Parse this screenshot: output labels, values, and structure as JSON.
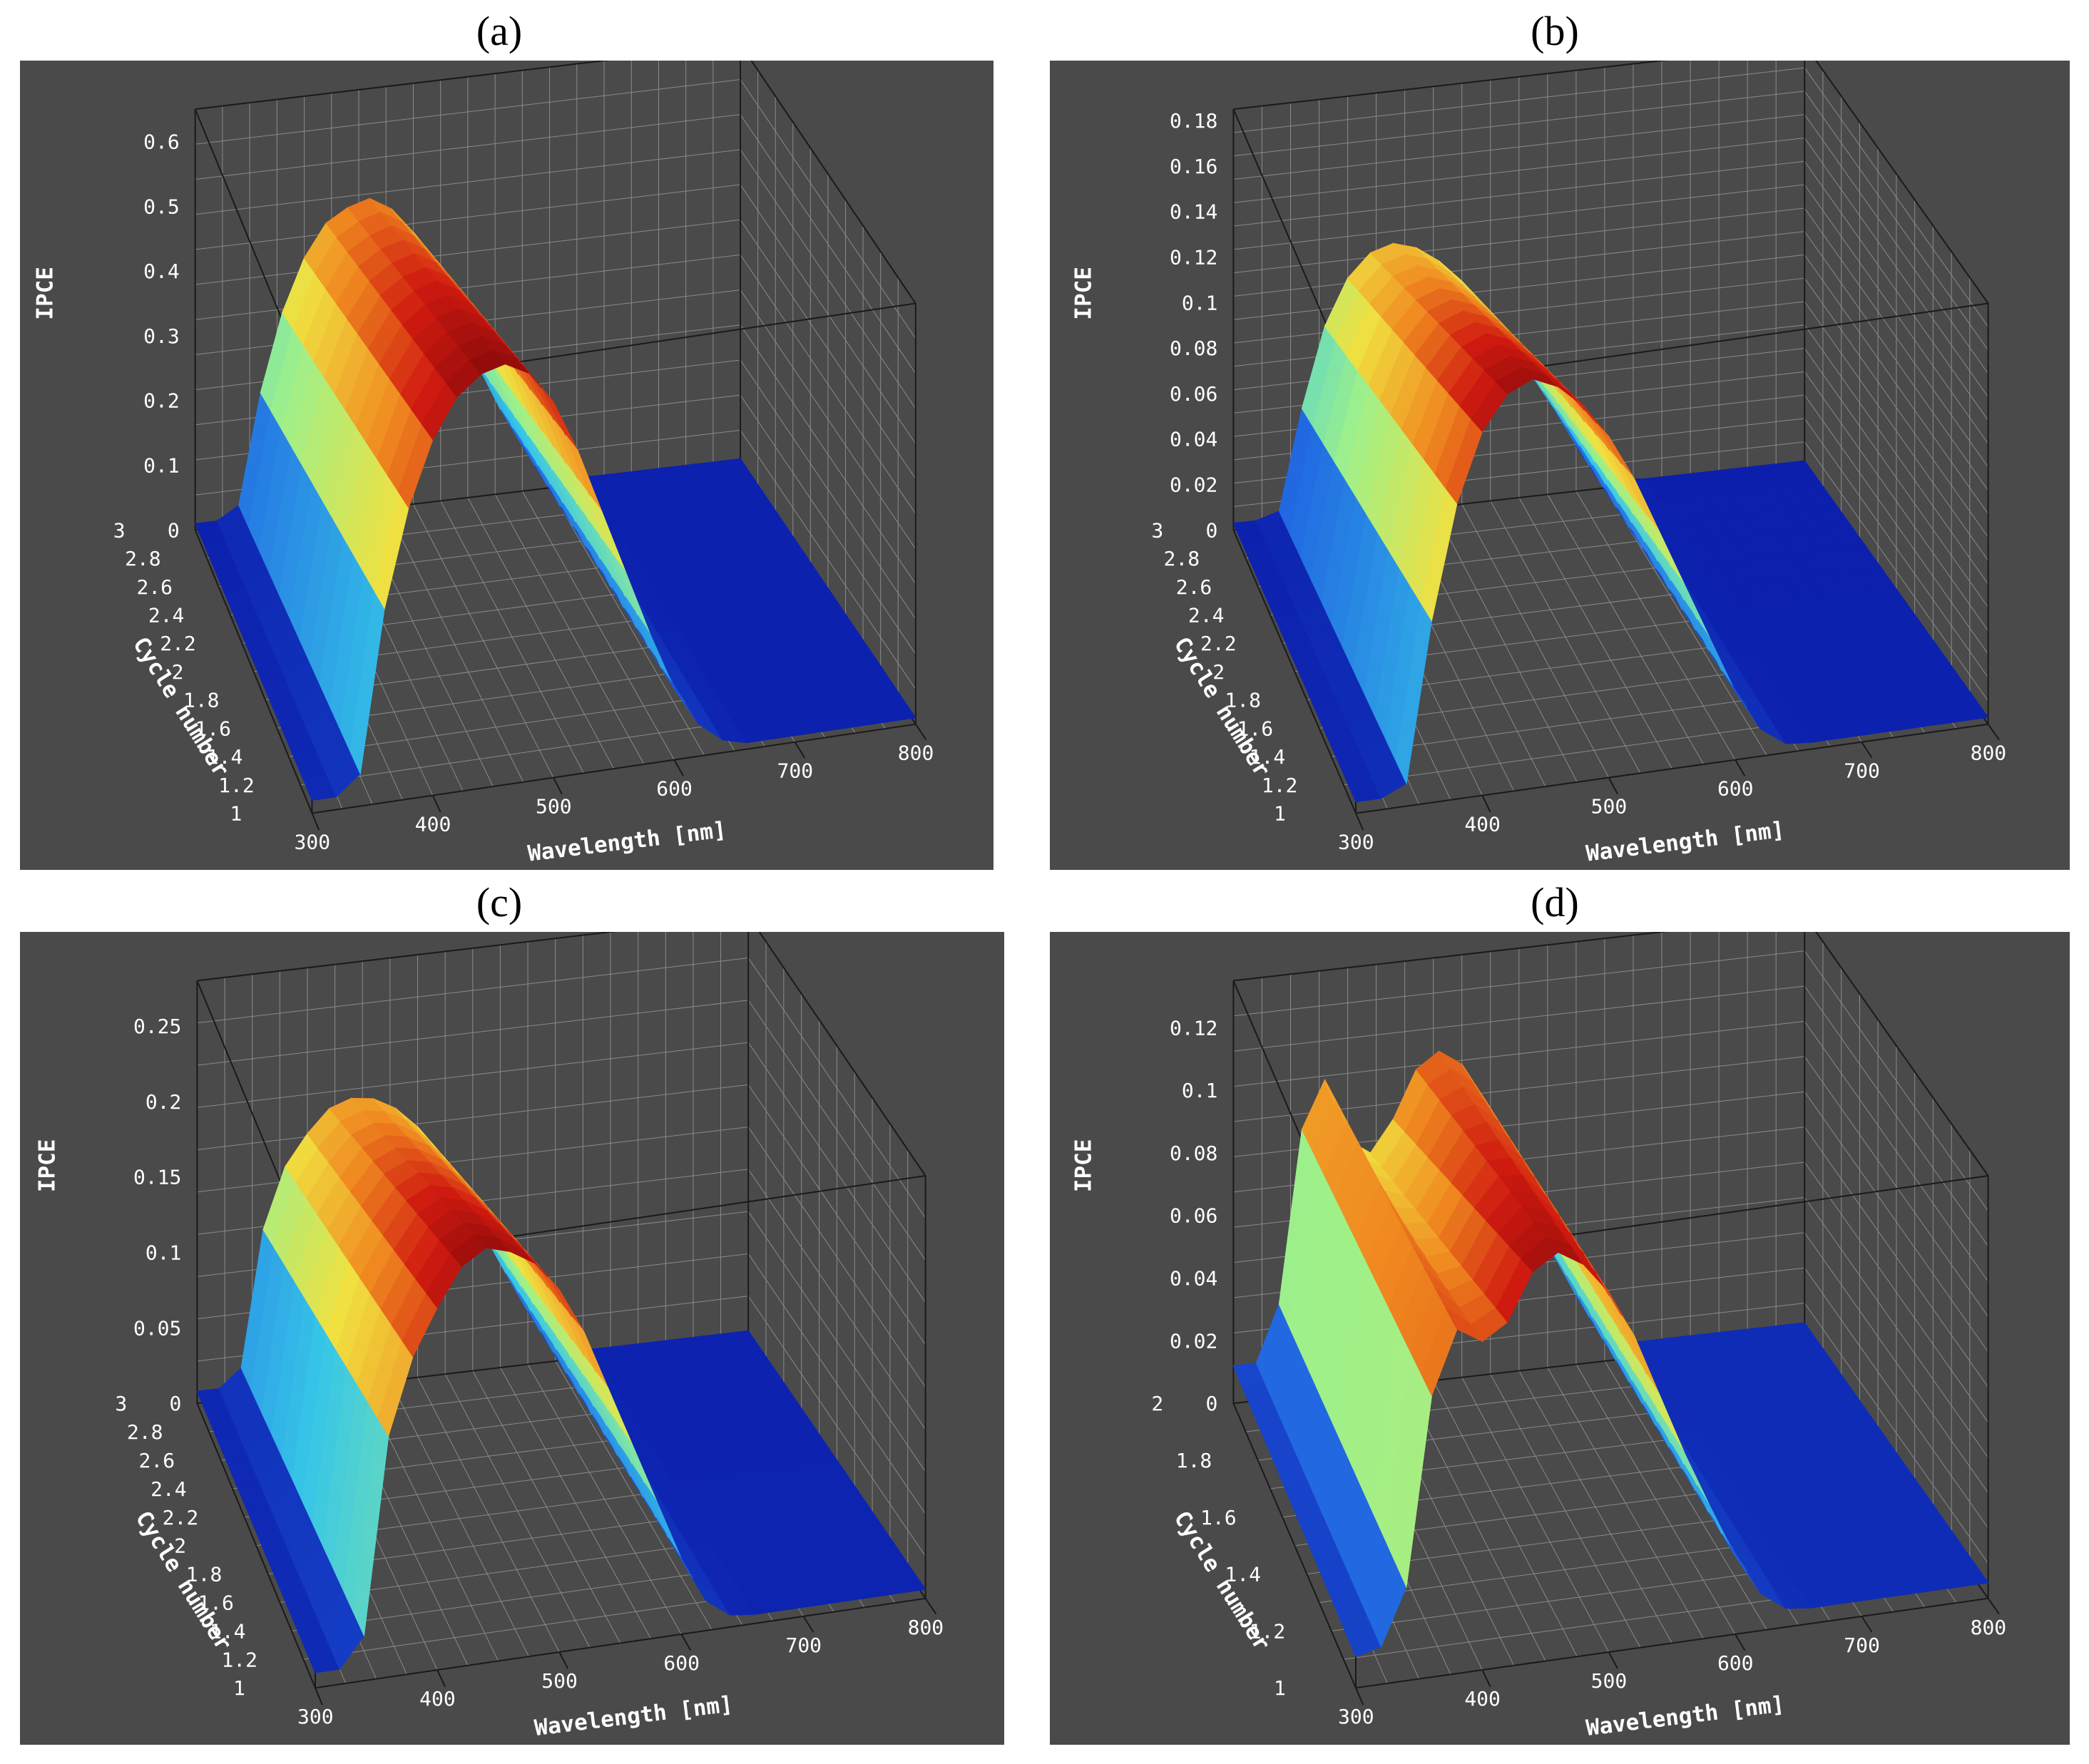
{
  "figure": {
    "colors": {
      "background": "#4a4a4a",
      "grid": "#8a8a8a",
      "box": "#1a1a1a",
      "text": "#ffffff"
    },
    "colormap": [
      "#0a1aa8",
      "#1f5fe0",
      "#36c6e8",
      "#9ef08a",
      "#f0e040",
      "#f08a20",
      "#d01a10",
      "#8a0a0a"
    ]
  },
  "chart_data": [
    {
      "panel_label": "(a)",
      "type": "surface3d",
      "xlabel": "Wavelength [nm]",
      "ylabel": "Cycle number",
      "zlabel": "IPCE",
      "x_ticks": [
        "300",
        "400",
        "500",
        "600",
        "700",
        "800"
      ],
      "y_ticks": [
        "1",
        "1.2",
        "1.4",
        "1.6",
        "1.8",
        "2",
        "2.2",
        "2.4",
        "2.6",
        "2.8",
        "3"
      ],
      "z_ticks": [
        "0",
        "0.1",
        "0.2",
        "0.3",
        "0.4",
        "0.5",
        "0.6"
      ],
      "xlim": [
        300,
        800
      ],
      "ylim": [
        1,
        3
      ],
      "zlim": [
        0,
        0.65
      ],
      "x": [
        300,
        320,
        340,
        360,
        380,
        400,
        420,
        440,
        460,
        480,
        500,
        520,
        540,
        560,
        580,
        600,
        620,
        640,
        660,
        680,
        700,
        720,
        740,
        760,
        780,
        800
      ],
      "z_by_cycle": {
        "1": [
          0.02,
          0.02,
          0.05,
          0.3,
          0.45,
          0.55,
          0.61,
          0.64,
          0.65,
          0.63,
          0.58,
          0.5,
          0.4,
          0.3,
          0.2,
          0.11,
          0.05,
          0.02,
          0.01,
          0.01,
          0.01,
          0.01,
          0.01,
          0.01,
          0.01,
          0.01
        ],
        "3": [
          0.01,
          0.01,
          0.03,
          0.2,
          0.32,
          0.4,
          0.45,
          0.47,
          0.48,
          0.46,
          0.42,
          0.36,
          0.28,
          0.2,
          0.13,
          0.07,
          0.03,
          0.01,
          0.01,
          0.01,
          0.01,
          0.01,
          0.01,
          0.01,
          0.01,
          0.01
        ]
      }
    },
    {
      "panel_label": "(b)",
      "type": "surface3d",
      "xlabel": "Wavelength [nm]",
      "ylabel": "Cycle number",
      "zlabel": "IPCE",
      "x_ticks": [
        "300",
        "400",
        "500",
        "600",
        "700",
        "800"
      ],
      "y_ticks": [
        "1",
        "1.2",
        "1.4",
        "1.6",
        "1.8",
        "2",
        "2.2",
        "2.4",
        "2.6",
        "2.8",
        "3"
      ],
      "z_ticks": [
        "0",
        "0.02",
        "0.04",
        "0.06",
        "0.08",
        "0.1",
        "0.12",
        "0.14",
        "0.16",
        "0.18"
      ],
      "xlim": [
        300,
        800
      ],
      "ylim": [
        1,
        3
      ],
      "zlim": [
        0,
        0.185
      ],
      "x": [
        300,
        320,
        340,
        360,
        380,
        400,
        420,
        440,
        460,
        480,
        500,
        520,
        540,
        560,
        580,
        600,
        620,
        640,
        660,
        680,
        700,
        720,
        740,
        760,
        780,
        800
      ],
      "z_by_cycle": {
        "1": [
          0.005,
          0.005,
          0.01,
          0.08,
          0.13,
          0.16,
          0.175,
          0.18,
          0.175,
          0.165,
          0.15,
          0.13,
          0.105,
          0.08,
          0.055,
          0.03,
          0.012,
          0.004,
          0.003,
          0.003,
          0.003,
          0.003,
          0.003,
          0.003,
          0.003,
          0.003
        ],
        "3": [
          0.003,
          0.003,
          0.006,
          0.05,
          0.085,
          0.105,
          0.115,
          0.118,
          0.115,
          0.108,
          0.098,
          0.085,
          0.07,
          0.054,
          0.038,
          0.02,
          0.008,
          0.003,
          0.002,
          0.002,
          0.002,
          0.002,
          0.002,
          0.002,
          0.002,
          0.002
        ]
      }
    },
    {
      "panel_label": "(c)",
      "type": "surface3d",
      "xlabel": "Wavelength [nm]",
      "ylabel": "Cycle number",
      "zlabel": "IPCE",
      "x_ticks": [
        "300",
        "400",
        "500",
        "600",
        "700",
        "800"
      ],
      "y_ticks": [
        "1",
        "1.2",
        "1.4",
        "1.6",
        "1.8",
        "2",
        "2.2",
        "2.4",
        "2.6",
        "2.8",
        "3"
      ],
      "z_ticks": [
        "0",
        "0.05",
        "0.1",
        "0.15",
        "0.2",
        "0.25"
      ],
      "xlim": [
        300,
        800
      ],
      "ylim": [
        1,
        3
      ],
      "zlim": [
        0,
        0.28
      ],
      "x": [
        300,
        320,
        340,
        360,
        380,
        400,
        420,
        440,
        460,
        480,
        500,
        520,
        540,
        560,
        580,
        600,
        620,
        640,
        660,
        680,
        700,
        720,
        740,
        760,
        780,
        800
      ],
      "z_by_cycle": {
        "1": [
          0.01,
          0.01,
          0.03,
          0.16,
          0.21,
          0.24,
          0.265,
          0.275,
          0.27,
          0.26,
          0.24,
          0.21,
          0.17,
          0.13,
          0.09,
          0.05,
          0.02,
          0.008,
          0.006,
          0.006,
          0.006,
          0.006,
          0.006,
          0.006,
          0.006,
          0.006
        ],
        "3": [
          0.008,
          0.008,
          0.02,
          0.11,
          0.15,
          0.17,
          0.185,
          0.19,
          0.188,
          0.18,
          0.166,
          0.145,
          0.118,
          0.09,
          0.062,
          0.035,
          0.014,
          0.006,
          0.005,
          0.005,
          0.005,
          0.005,
          0.005,
          0.005,
          0.005,
          0.005
        ]
      }
    },
    {
      "panel_label": "(d)",
      "type": "surface3d",
      "xlabel": "Wavelength [nm]",
      "ylabel": "Cycle number",
      "zlabel": "IPCE",
      "x_ticks": [
        "300",
        "400",
        "500",
        "600",
        "700",
        "800"
      ],
      "y_ticks": [
        "1",
        "1.2",
        "1.4",
        "1.6",
        "1.8",
        "2"
      ],
      "z_ticks": [
        "0",
        "0.02",
        "0.04",
        "0.06",
        "0.08",
        "0.1",
        "0.12"
      ],
      "xlim": [
        300,
        800
      ],
      "ylim": [
        1,
        2
      ],
      "zlim": [
        0,
        0.135
      ],
      "x": [
        300,
        320,
        340,
        360,
        380,
        400,
        420,
        440,
        460,
        480,
        500,
        520,
        540,
        560,
        580,
        600,
        620,
        640,
        660,
        680,
        700,
        720,
        740,
        760,
        780,
        800
      ],
      "z_by_cycle": {
        "1": [
          0.01,
          0.012,
          0.03,
          0.09,
          0.11,
          0.105,
          0.11,
          0.125,
          0.13,
          0.125,
          0.115,
          0.1,
          0.08,
          0.06,
          0.042,
          0.025,
          0.012,
          0.006,
          0.005,
          0.005,
          0.005,
          0.005,
          0.005,
          0.005,
          0.005,
          0.005
        ],
        "2": [
          0.012,
          0.012,
          0.03,
          0.085,
          0.1,
          0.08,
          0.075,
          0.085,
          0.1,
          0.105,
          0.1,
          0.088,
          0.07,
          0.052,
          0.036,
          0.022,
          0.01,
          0.005,
          0.005,
          0.005,
          0.005,
          0.005,
          0.005,
          0.005,
          0.005,
          0.005
        ]
      }
    }
  ]
}
